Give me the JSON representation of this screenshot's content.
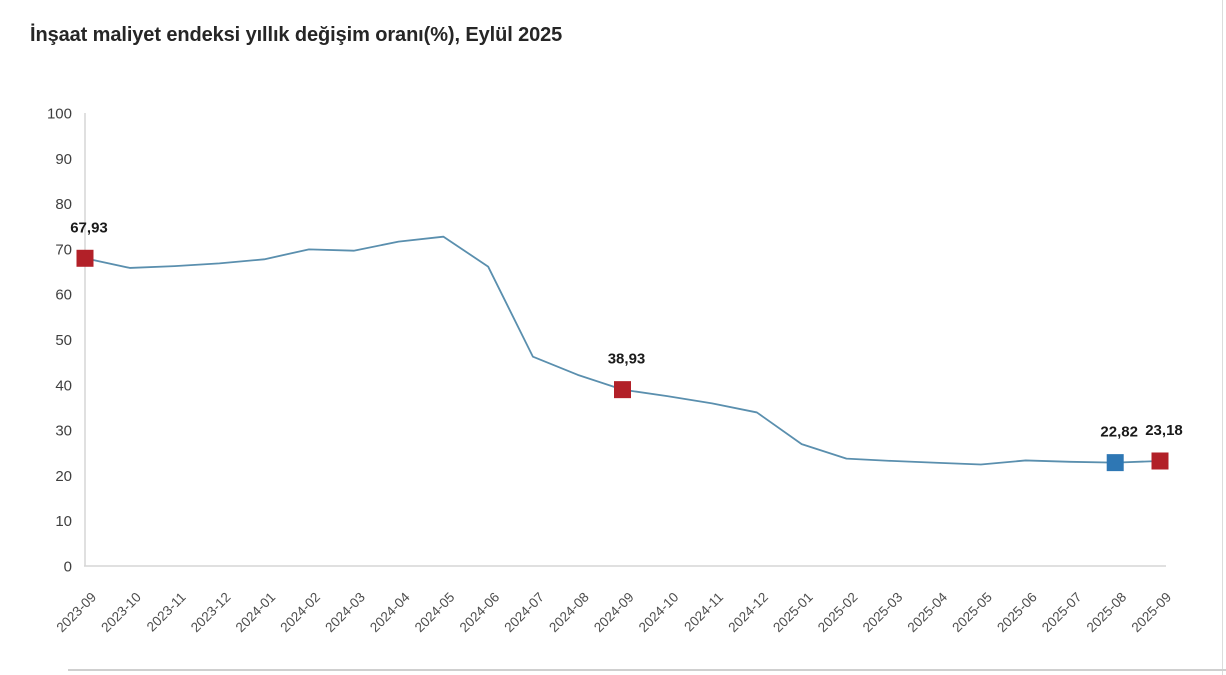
{
  "page": {
    "title": "İnşaat maliyet endeksi yıllık değişim oranı(%), Eylül 2025"
  },
  "chart_data": {
    "type": "line",
    "title": "İnşaat maliyet endeksi yıllık değişim oranı(%), Eylül 2025",
    "xlabel": "",
    "ylabel": "",
    "ylim": [
      0,
      100
    ],
    "ytick_step": 10,
    "grid": false,
    "legend": "none",
    "decimal_separator": ",",
    "line_color": "#5a8fae",
    "axis_color": "#d6d6d6",
    "categories": [
      "2023-09",
      "2023-10",
      "2023-11",
      "2023-12",
      "2024-01",
      "2024-02",
      "2024-03",
      "2024-04",
      "2024-05",
      "2024-06",
      "2024-07",
      "2024-08",
      "2024-09",
      "2024-10",
      "2024-11",
      "2024-12",
      "2025-01",
      "2025-02",
      "2025-03",
      "2025-04",
      "2025-05",
      "2025-06",
      "2025-07",
      "2025-08",
      "2025-09"
    ],
    "series": [
      {
        "name": "İnşaat maliyet endeksi yıllık değişim oranı (%)",
        "values": [
          67.93,
          65.8,
          66.2,
          66.8,
          67.7,
          69.9,
          69.6,
          71.6,
          72.7,
          66.1,
          46.2,
          42.2,
          38.93,
          37.5,
          35.9,
          33.9,
          26.9,
          23.7,
          23.2,
          22.8,
          22.4,
          23.3,
          23.0,
          22.82,
          23.18
        ]
      }
    ],
    "highlighted_points": [
      {
        "category": "2023-09",
        "value": 67.93,
        "label": "67,93",
        "marker": "square",
        "marker_color": "#b22028"
      },
      {
        "category": "2024-09",
        "value": 38.93,
        "label": "38,93",
        "marker": "square",
        "marker_color": "#b22028"
      },
      {
        "category": "2025-08",
        "value": 22.82,
        "label": "22,82",
        "marker": "square",
        "marker_color": "#2e77b4"
      },
      {
        "category": "2025-09",
        "value": 23.18,
        "label": "23,18",
        "marker": "square",
        "marker_color": "#b22028"
      }
    ]
  }
}
